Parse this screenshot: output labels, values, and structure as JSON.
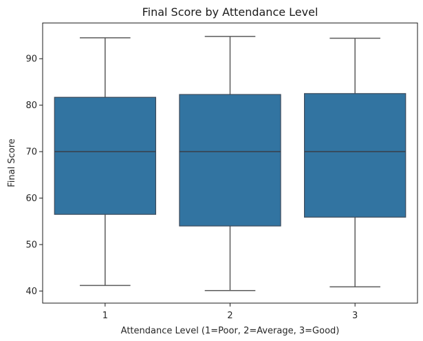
{
  "chart_data": {
    "type": "box",
    "title": "Final Score by Attendance Level",
    "xlabel": "Attendance Level (1=Poor, 2=Average, 3=Good)",
    "ylabel": "Final Score",
    "categories": [
      "1",
      "2",
      "3"
    ],
    "ylim": [
      37.4,
      97.7
    ],
    "yticks": [
      40,
      50,
      60,
      70,
      80,
      90
    ],
    "grid": false,
    "legend": null,
    "boxes": [
      {
        "category": "1",
        "whislo": 41.2,
        "q1": 56.5,
        "median": 70.0,
        "q3": 81.7,
        "whishi": 94.5
      },
      {
        "category": "2",
        "whislo": 40.1,
        "q1": 54.0,
        "median": 70.0,
        "q3": 82.3,
        "whishi": 94.8
      },
      {
        "category": "3",
        "whislo": 40.9,
        "q1": 55.9,
        "median": 70.0,
        "q3": 82.5,
        "whishi": 94.4
      }
    ],
    "colors": {
      "box_fill": "#3274a1",
      "box_edge": "#3d4a5a",
      "median": "#3a3f4a",
      "whisker": "#5a5a5a",
      "axis": "#1a1a1a"
    }
  }
}
